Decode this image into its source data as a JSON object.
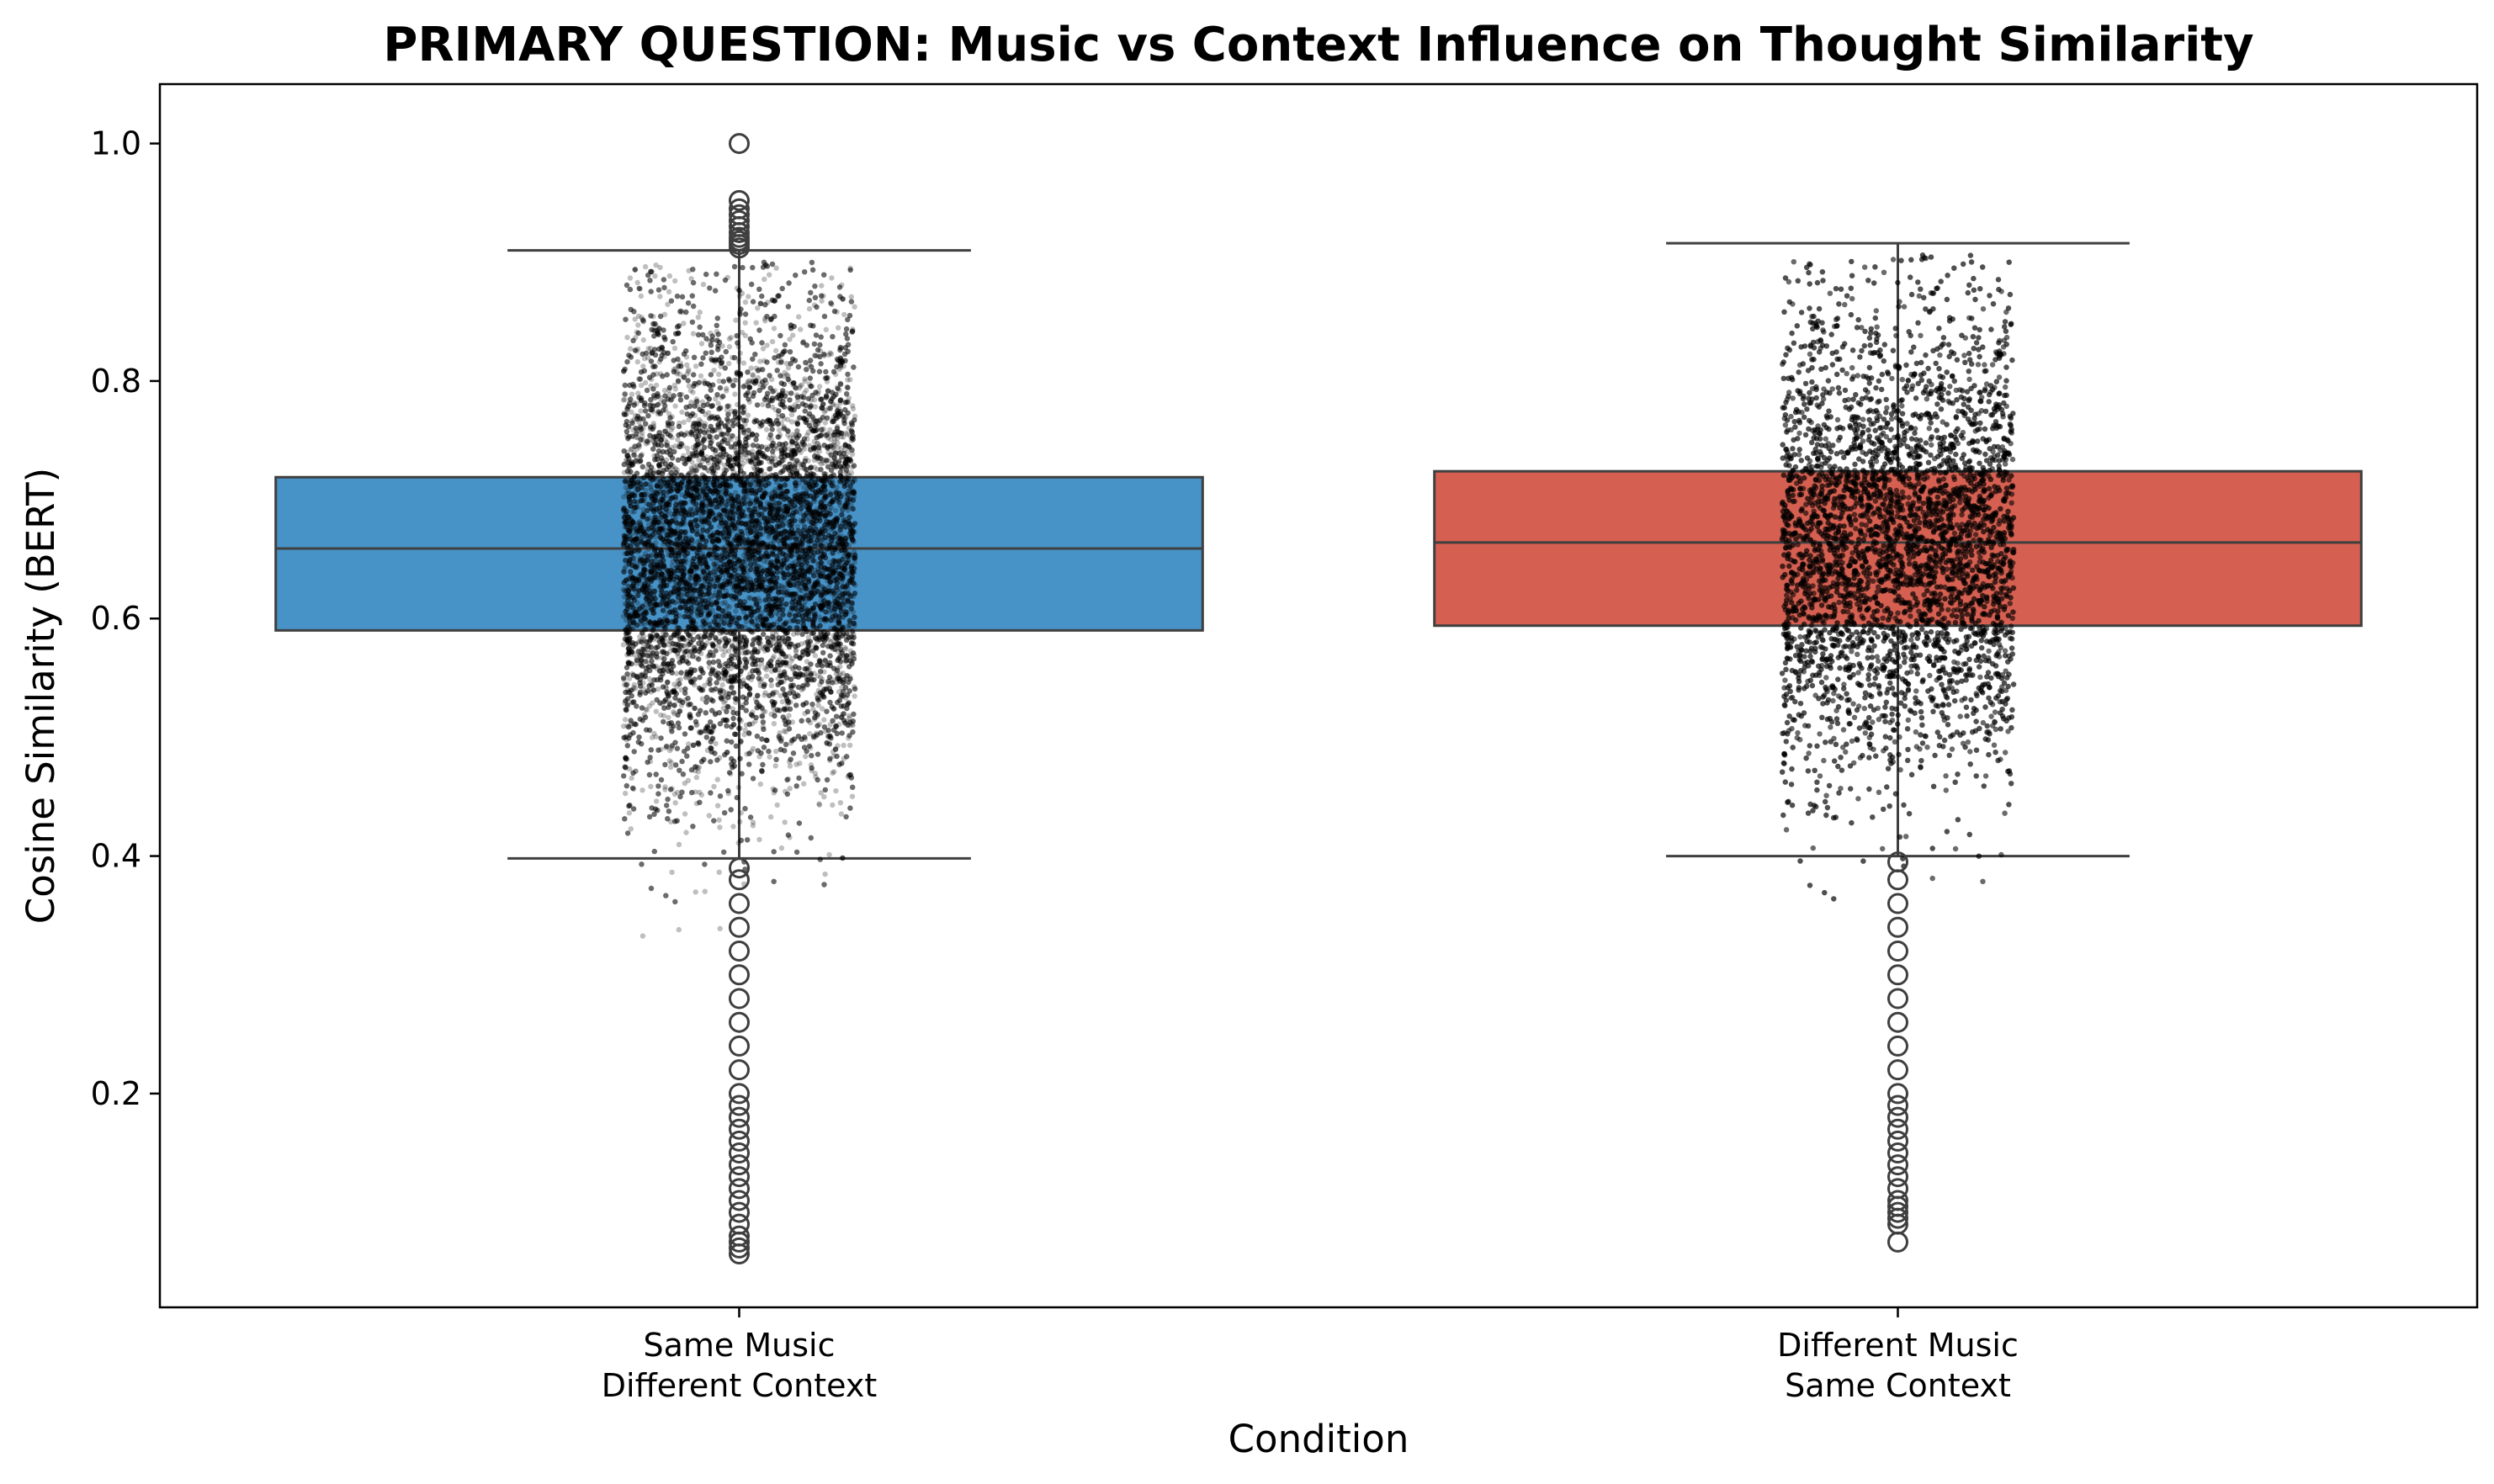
{
  "chart_data": {
    "type": "box",
    "title": "PRIMARY QUESTION: Music vs Context Influence on Thought Similarity",
    "xlabel": "Condition",
    "ylabel": "Cosine Similarity (BERT)",
    "ylim": [
      0.02,
      1.05
    ],
    "yticks": [
      {
        "value": 0.2,
        "label": "0.2"
      },
      {
        "value": 0.4,
        "label": "0.4"
      },
      {
        "value": 0.6,
        "label": "0.6"
      },
      {
        "value": 0.8,
        "label": "0.8"
      },
      {
        "value": 1.0,
        "label": "1.0"
      }
    ],
    "grid": false,
    "legend": "none",
    "categories": [
      {
        "line1": "Same Music",
        "line2": "Different Context"
      },
      {
        "line1": "Different Music",
        "line2": "Same Context"
      }
    ],
    "boxes": [
      {
        "q1": 0.59,
        "median": 0.659,
        "q3": 0.719,
        "whisker_low": 0.398,
        "whisker_high": 0.91,
        "color": "#4793C8",
        "outliers_low": [
          0.065,
          0.07,
          0.075,
          0.08,
          0.09,
          0.1,
          0.11,
          0.12,
          0.13,
          0.14,
          0.15,
          0.16,
          0.17,
          0.18,
          0.19,
          0.2,
          0.22,
          0.24,
          0.26,
          0.28,
          0.3,
          0.32,
          0.34,
          0.36,
          0.38,
          0.39
        ],
        "outliers_high": [
          0.912,
          0.915,
          0.918,
          0.921,
          0.925,
          0.93,
          0.935,
          0.94,
          0.945,
          0.952,
          1.0
        ]
      },
      {
        "q1": 0.594,
        "median": 0.664,
        "q3": 0.724,
        "whisker_low": 0.4,
        "whisker_high": 0.916,
        "color": "#D55F50",
        "outliers_low": [
          0.075,
          0.09,
          0.095,
          0.1,
          0.105,
          0.11,
          0.12,
          0.13,
          0.14,
          0.15,
          0.16,
          0.17,
          0.18,
          0.19,
          0.2,
          0.22,
          0.24,
          0.26,
          0.28,
          0.3,
          0.32,
          0.34,
          0.36,
          0.38,
          0.395
        ],
        "outliers_high": []
      }
    ],
    "points_color": "#000000"
  }
}
